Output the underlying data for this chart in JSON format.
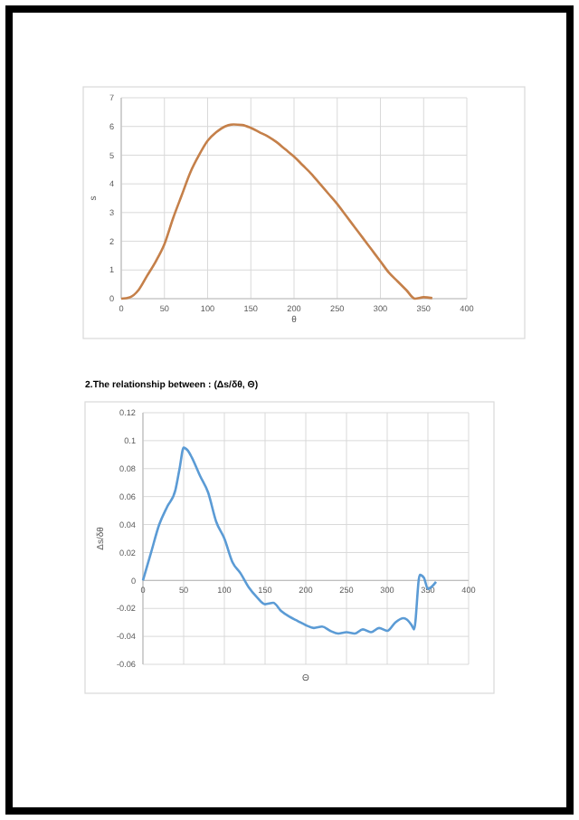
{
  "chart_data": [
    {
      "type": "line",
      "xlabel": "θ",
      "ylabel": "s",
      "xlim": [
        0,
        400
      ],
      "xticks": [
        0,
        50,
        100,
        150,
        200,
        250,
        300,
        350,
        400
      ],
      "ylim": [
        0,
        7
      ],
      "yticks": [
        0,
        1,
        2,
        3,
        4,
        5,
        6,
        7
      ],
      "grid": true,
      "marker": "none",
      "line_style": "solid",
      "x": [
        0,
        10,
        20,
        30,
        40,
        50,
        60,
        70,
        80,
        90,
        100,
        110,
        120,
        130,
        140,
        150,
        160,
        170,
        180,
        190,
        200,
        210,
        220,
        230,
        240,
        250,
        260,
        270,
        280,
        290,
        300,
        310,
        320,
        330,
        340,
        350,
        360
      ],
      "series": [
        {
          "color": "#c5804a",
          "values": [
            0,
            0.05,
            0.3,
            0.8,
            1.3,
            1.9,
            2.8,
            3.6,
            4.4,
            5.0,
            5.5,
            5.8,
            6.0,
            6.07,
            6.05,
            5.95,
            5.8,
            5.65,
            5.45,
            5.2,
            4.95,
            4.65,
            4.35,
            4.0,
            3.65,
            3.3,
            2.9,
            2.5,
            2.1,
            1.7,
            1.3,
            0.9,
            0.6,
            0.3,
            0.0,
            0.05,
            0.02
          ]
        }
      ]
    },
    {
      "type": "line",
      "title": "2.The relationship between : (Δs/δθ, Θ)",
      "xlabel": "Θ",
      "ylabel": "Δs/δθ",
      "xlim": [
        0,
        400
      ],
      "xticks": [
        0,
        50,
        100,
        150,
        200,
        250,
        300,
        350,
        400
      ],
      "ylim": [
        -0.06,
        0.12
      ],
      "yticks": [
        -0.06,
        -0.04,
        -0.02,
        0,
        0.02,
        0.04,
        0.06,
        0.08,
        0.1,
        0.12
      ],
      "grid": true,
      "marker": "none",
      "line_style": "solid",
      "x": [
        0,
        10,
        20,
        30,
        40,
        45,
        50,
        55,
        60,
        70,
        80,
        90,
        100,
        110,
        120,
        130,
        140,
        150,
        160,
        170,
        180,
        190,
        200,
        210,
        220,
        230,
        240,
        250,
        260,
        270,
        280,
        290,
        300,
        310,
        320,
        330,
        333,
        340,
        345,
        350,
        360
      ],
      "series": [
        {
          "color": "#5b9bd5",
          "values": [
            0,
            0.02,
            0.04,
            0.053,
            0.065,
            0.08,
            0.095,
            0.093,
            0.088,
            0.075,
            0.063,
            0.042,
            0.03,
            0.013,
            0.005,
            -0.005,
            -0.012,
            -0.017,
            -0.016,
            -0.022,
            -0.026,
            -0.029,
            -0.032,
            -0.034,
            -0.033,
            -0.036,
            -0.038,
            -0.037,
            -0.038,
            -0.035,
            -0.037,
            -0.034,
            -0.036,
            -0.03,
            -0.027,
            -0.032,
            -0.035,
            0.004,
            0.002,
            -0.006,
            -0.001
          ]
        }
      ]
    }
  ]
}
